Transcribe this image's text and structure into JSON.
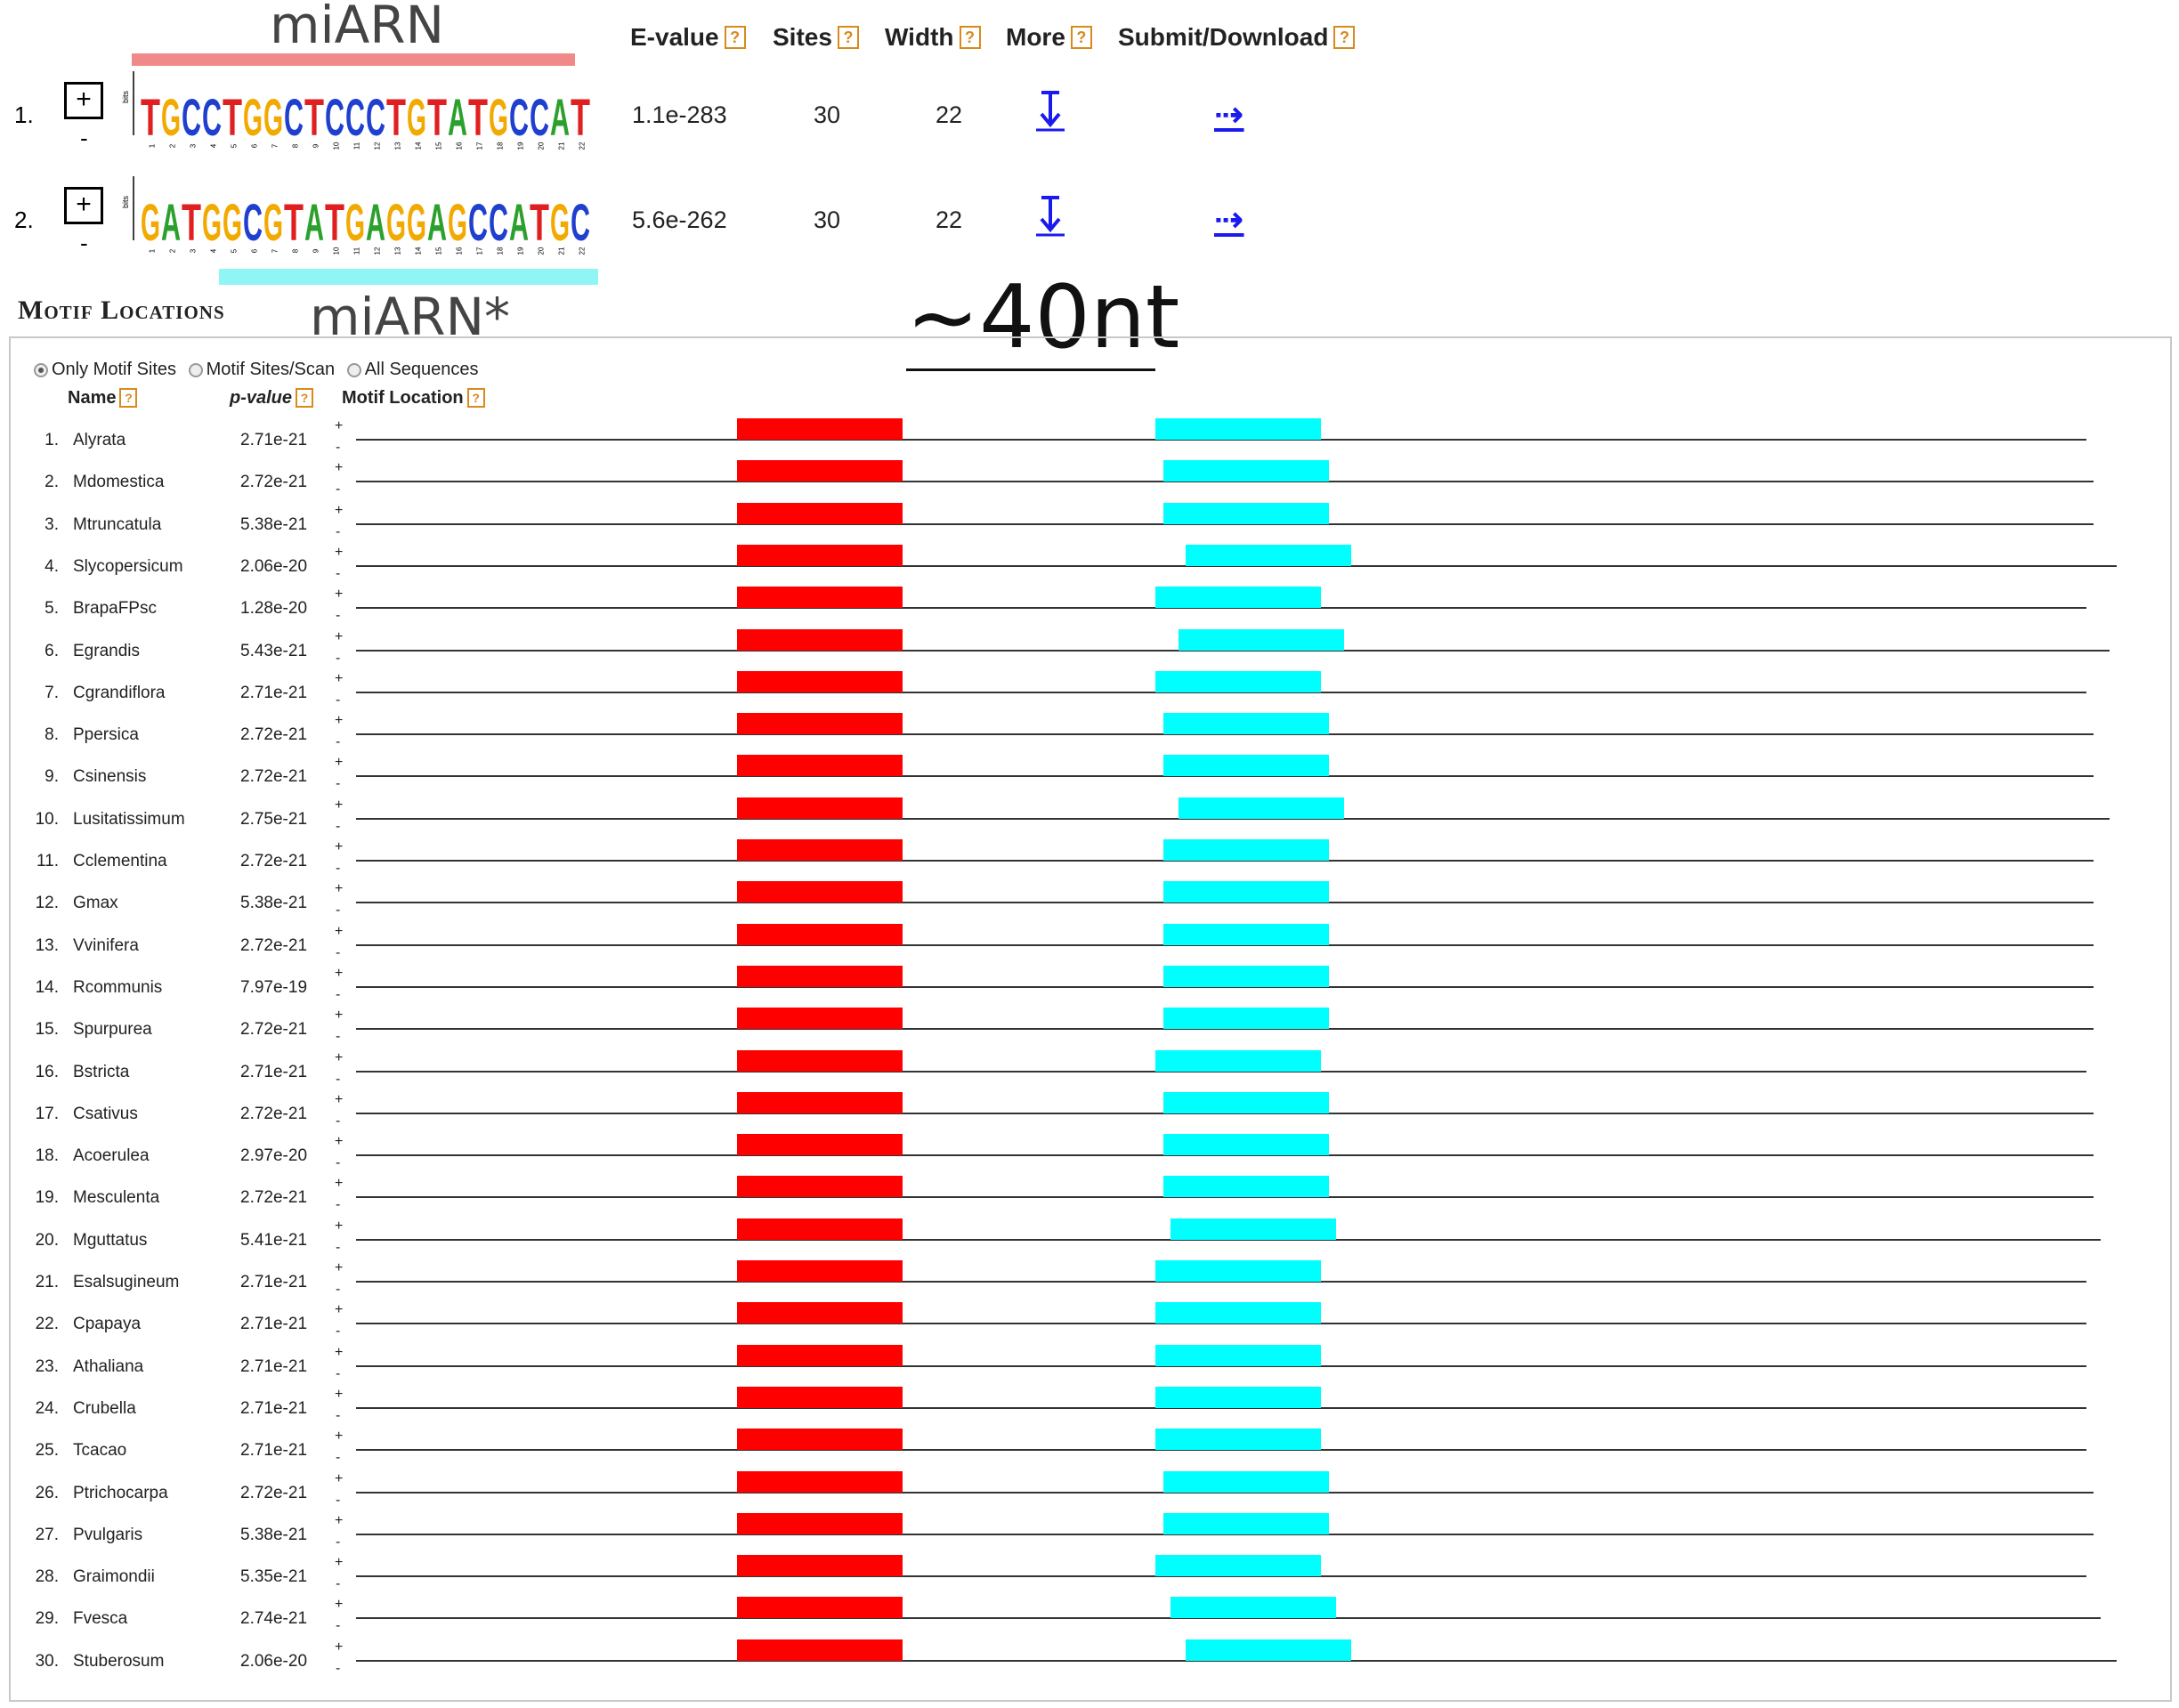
{
  "annotations": {
    "mirna_label": "miARN",
    "mirna_star_label": "miARN*",
    "length_label": "~40nt",
    "colors": {
      "mirna_bar": "#f08a8a",
      "mirna_star_bar": "#8ff5f5"
    }
  },
  "motif_table": {
    "headers": {
      "evalue": "E-value",
      "sites": "Sites",
      "width": "Width",
      "more": "More",
      "submit": "Submit/Download"
    },
    "help_glyph": "?",
    "expand_glyph": "+",
    "collapse_glyph": "-",
    "submit_glyph": "⇢",
    "more_icon": "down-arrow-icon",
    "motifs": [
      {
        "num": "1.",
        "consensus": "TGCCTGGCTCCCTGTATGCCAT",
        "evalue": "1.1e-283",
        "sites": "30",
        "width": "22"
      },
      {
        "num": "2.",
        "consensus": "GATGGCGTATGAGGAGCCATGC",
        "evalue": "5.6e-262",
        "sites": "30",
        "width": "22"
      }
    ],
    "logo_axis_label": "bits"
  },
  "locations": {
    "title": "Motif Locations",
    "radios": [
      {
        "label": "Only Motif Sites",
        "selected": true
      },
      {
        "label": "Motif Sites/Scan",
        "selected": false
      },
      {
        "label": "All Sequences",
        "selected": false
      }
    ],
    "headers": {
      "name": "Name",
      "pvalue": "p-value",
      "location": "Motif Location"
    },
    "strand_plus": "+",
    "strand_minus": "-",
    "colors": {
      "site1": "#ff0000",
      "site2": "#00ffff"
    },
    "sequences": [
      {
        "num": "1.",
        "name": "Alyrata",
        "pvalue": "2.71e-21"
      },
      {
        "num": "2.",
        "name": "Mdomestica",
        "pvalue": "2.72e-21"
      },
      {
        "num": "3.",
        "name": "Mtruncatula",
        "pvalue": "5.38e-21"
      },
      {
        "num": "4.",
        "name": "Slycopersicum",
        "pvalue": "2.06e-20"
      },
      {
        "num": "5.",
        "name": "BrapaFPsc",
        "pvalue": "1.28e-20"
      },
      {
        "num": "6.",
        "name": "Egrandis",
        "pvalue": "5.43e-21"
      },
      {
        "num": "7.",
        "name": "Cgrandiflora",
        "pvalue": "2.71e-21"
      },
      {
        "num": "8.",
        "name": "Ppersica",
        "pvalue": "2.72e-21"
      },
      {
        "num": "9.",
        "name": "Csinensis",
        "pvalue": "2.72e-21"
      },
      {
        "num": "10.",
        "name": "Lusitatissimum",
        "pvalue": "2.75e-21"
      },
      {
        "num": "11.",
        "name": "Cclementina",
        "pvalue": "2.72e-21"
      },
      {
        "num": "12.",
        "name": "Gmax",
        "pvalue": "5.38e-21"
      },
      {
        "num": "13.",
        "name": "Vvinifera",
        "pvalue": "2.72e-21"
      },
      {
        "num": "14.",
        "name": "Rcommunis",
        "pvalue": "7.97e-19"
      },
      {
        "num": "15.",
        "name": "Spurpurea",
        "pvalue": "2.72e-21"
      },
      {
        "num": "16.",
        "name": "Bstricta",
        "pvalue": "2.71e-21"
      },
      {
        "num": "17.",
        "name": "Csativus",
        "pvalue": "2.72e-21"
      },
      {
        "num": "18.",
        "name": "Acoerulea",
        "pvalue": "2.97e-20"
      },
      {
        "num": "19.",
        "name": "Mesculenta",
        "pvalue": "2.72e-21"
      },
      {
        "num": "20.",
        "name": "Mguttatus",
        "pvalue": "5.41e-21"
      },
      {
        "num": "21.",
        "name": "Esalsugineum",
        "pvalue": "2.71e-21"
      },
      {
        "num": "22.",
        "name": "Cpapaya",
        "pvalue": "2.71e-21"
      },
      {
        "num": "23.",
        "name": "Athaliana",
        "pvalue": "2.71e-21"
      },
      {
        "num": "24.",
        "name": "Crubella",
        "pvalue": "2.71e-21"
      },
      {
        "num": "25.",
        "name": "Tcacao",
        "pvalue": "2.71e-21"
      },
      {
        "num": "26.",
        "name": "Ptrichocarpa",
        "pvalue": "2.72e-21"
      },
      {
        "num": "27.",
        "name": "Pvulgaris",
        "pvalue": "5.38e-21"
      },
      {
        "num": "28.",
        "name": "Graimondii",
        "pvalue": "5.35e-21"
      },
      {
        "num": "29.",
        "name": "Fvesca",
        "pvalue": "2.74e-21"
      },
      {
        "num": "30.",
        "name": "Stuberosum",
        "pvalue": "2.06e-20"
      }
    ]
  },
  "base_colors": {
    "A": "#2ca02c",
    "C": "#1f3fcf",
    "G": "#f2a900",
    "T": "#e02020"
  }
}
